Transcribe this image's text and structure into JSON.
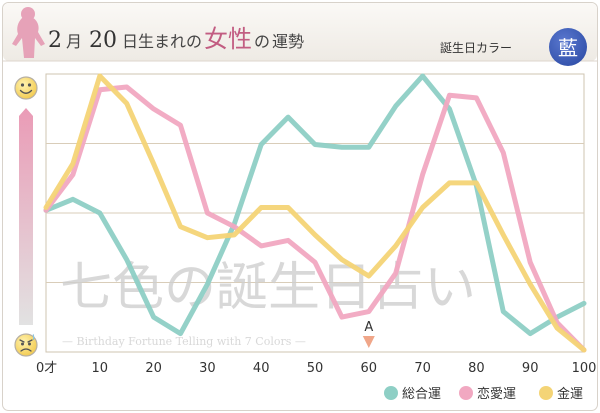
{
  "header": {
    "month_num": "2",
    "month_unit": "月",
    "day_num": "20",
    "mid_text": "日生まれの",
    "gender_text": "女性",
    "particle": "の",
    "fortune_text": "運勢",
    "birth_color_label": "誕生日カラー",
    "birth_color_name": "藍",
    "birth_color_hex": "#3a59b4"
  },
  "icons": {
    "top": "smile-face-icon",
    "bottom": "worried-face-icon",
    "figure": "woman-silhouette-icon"
  },
  "watermark": {
    "brand": "七色の誕生日占い",
    "subtitle": "— Birthday Fortune Telling with 7 Colors —"
  },
  "marker": {
    "label": "A",
    "x": 60
  },
  "chart_data": {
    "type": "line",
    "xlim": [
      0,
      100
    ],
    "ylim": [
      0,
      100
    ],
    "x_ticks": [
      {
        "value": 0,
        "label": "0才"
      },
      {
        "value": 10,
        "label": "10"
      },
      {
        "value": 20,
        "label": "20"
      },
      {
        "value": 30,
        "label": "30"
      },
      {
        "value": 40,
        "label": "40"
      },
      {
        "value": 50,
        "label": "50"
      },
      {
        "value": 60,
        "label": "60"
      },
      {
        "value": 70,
        "label": "70"
      },
      {
        "value": 80,
        "label": "80"
      },
      {
        "value": 90,
        "label": "90"
      },
      {
        "value": 100,
        "label": "100"
      }
    ],
    "grid": "horizontal",
    "legend_position": "bottom-right",
    "series": [
      {
        "name": "総合運",
        "color": "#8ecfc5",
        "points": [
          [
            0,
            51
          ],
          [
            5,
            55
          ],
          [
            10,
            50
          ],
          [
            15,
            33
          ],
          [
            20,
            12
          ],
          [
            25,
            6
          ],
          [
            30,
            24
          ],
          [
            35,
            46
          ],
          [
            40,
            75
          ],
          [
            45,
            85
          ],
          [
            50,
            75
          ],
          [
            55,
            74
          ],
          [
            60,
            74
          ],
          [
            65,
            89
          ],
          [
            70,
            100
          ],
          [
            75,
            88
          ],
          [
            80,
            60
          ],
          [
            85,
            14
          ],
          [
            90,
            6
          ],
          [
            95,
            12
          ],
          [
            100,
            17
          ]
        ]
      },
      {
        "name": "恋愛運",
        "color": "#f1a8c1",
        "points": [
          [
            0,
            51
          ],
          [
            5,
            64
          ],
          [
            10,
            95
          ],
          [
            15,
            96
          ],
          [
            20,
            88
          ],
          [
            25,
            82
          ],
          [
            30,
            50
          ],
          [
            35,
            45
          ],
          [
            40,
            38
          ],
          [
            45,
            40
          ],
          [
            50,
            32
          ],
          [
            55,
            12
          ],
          [
            60,
            14
          ],
          [
            65,
            28
          ],
          [
            70,
            64
          ],
          [
            75,
            93
          ],
          [
            80,
            92
          ],
          [
            85,
            72
          ],
          [
            90,
            32
          ],
          [
            95,
            10
          ],
          [
            100,
            0
          ]
        ]
      },
      {
        "name": "金運",
        "color": "#f4d476",
        "points": [
          [
            0,
            52
          ],
          [
            5,
            68
          ],
          [
            10,
            100
          ],
          [
            15,
            90
          ],
          [
            20,
            68
          ],
          [
            25,
            45
          ],
          [
            30,
            41
          ],
          [
            35,
            42
          ],
          [
            40,
            52
          ],
          [
            45,
            52
          ],
          [
            50,
            42
          ],
          [
            55,
            33
          ],
          [
            60,
            27
          ],
          [
            65,
            38
          ],
          [
            70,
            52
          ],
          [
            75,
            61
          ],
          [
            80,
            61
          ],
          [
            85,
            42
          ],
          [
            90,
            24
          ],
          [
            95,
            8
          ],
          [
            100,
            0
          ]
        ]
      }
    ]
  }
}
